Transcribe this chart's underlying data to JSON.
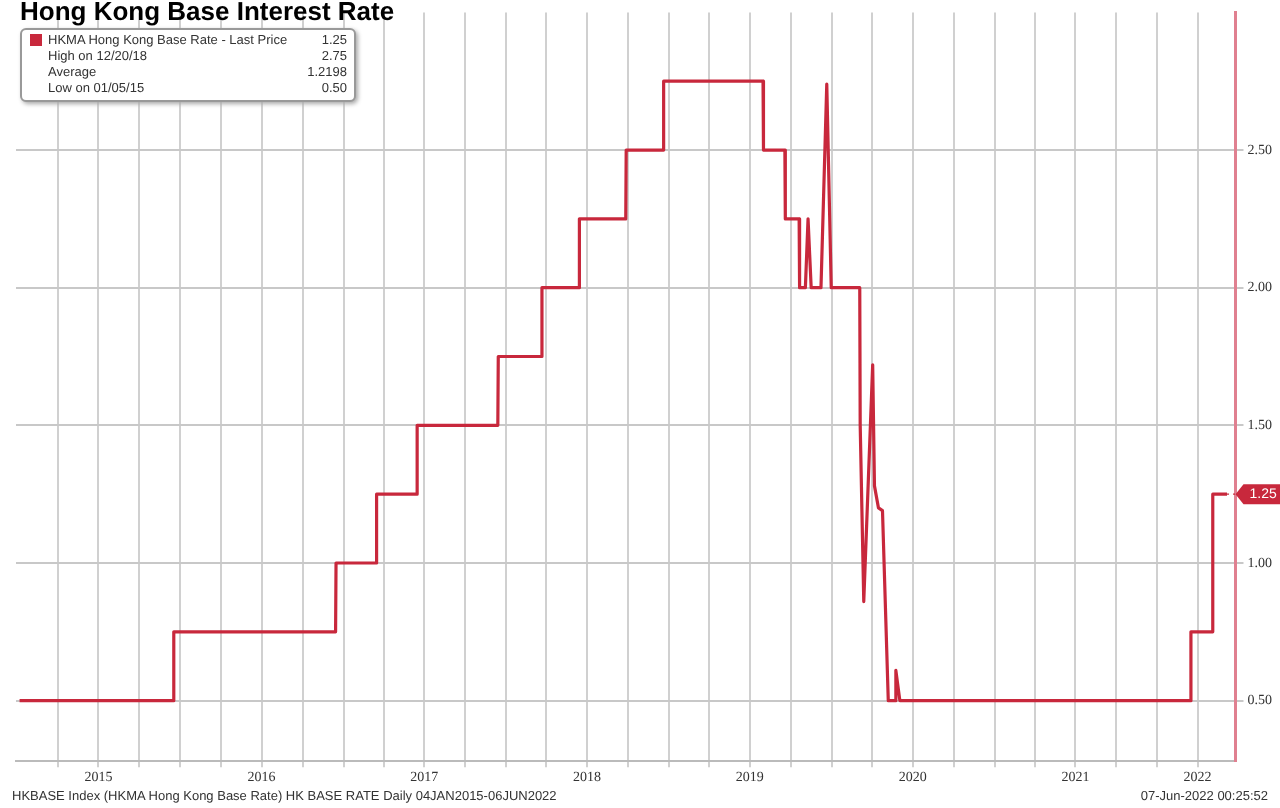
{
  "chart_data": {
    "type": "line",
    "title": "Hong Kong Base Interest Rate",
    "xlim": [
      "2014-12-28",
      "2022-06-25"
    ],
    "xticks": [
      {
        "value": "2015-04-01",
        "label": null
      },
      {
        "value": "2015-07-01",
        "label": "2015"
      },
      {
        "value": "2015-10-01",
        "label": null
      },
      {
        "value": "2016-01-01",
        "label": null
      },
      {
        "value": "2016-04-01",
        "label": null
      },
      {
        "value": "2016-07-01",
        "label": "2016"
      },
      {
        "value": "2016-10-01",
        "label": null
      },
      {
        "value": "2017-01-01",
        "label": null
      },
      {
        "value": "2017-04-01",
        "label": null
      },
      {
        "value": "2017-07-01",
        "label": "2017"
      },
      {
        "value": "2017-10-01",
        "label": null
      },
      {
        "value": "2018-01-01",
        "label": null
      },
      {
        "value": "2018-04-01",
        "label": null
      },
      {
        "value": "2018-07-01",
        "label": "2018"
      },
      {
        "value": "2018-10-01",
        "label": null
      },
      {
        "value": "2019-01-01",
        "label": null
      },
      {
        "value": "2019-04-01",
        "label": null
      },
      {
        "value": "2019-07-01",
        "label": "2019"
      },
      {
        "value": "2019-10-01",
        "label": null
      },
      {
        "value": "2020-01-01",
        "label": null
      },
      {
        "value": "2020-04-01",
        "label": null
      },
      {
        "value": "2020-07-01",
        "label": "2020"
      },
      {
        "value": "2020-10-01",
        "label": null
      },
      {
        "value": "2021-01-01",
        "label": null
      },
      {
        "value": "2021-04-01",
        "label": null
      },
      {
        "value": "2021-07-01",
        "label": "2021"
      },
      {
        "value": "2021-10-01",
        "label": null
      },
      {
        "value": "2022-01-01",
        "label": null
      },
      {
        "value": "2022-04-01",
        "label": "2022"
      }
    ],
    "ylim": [
      0.28,
      3.0
    ],
    "yticks": [
      {
        "value": 0.5,
        "label": "0.50"
      },
      {
        "value": 1,
        "label": "1.00"
      },
      {
        "value": 1.5,
        "label": "1.50"
      },
      {
        "value": 2,
        "label": "2.00"
      },
      {
        "value": 2.5,
        "label": "2.50"
      }
    ],
    "grid": true,
    "legend": "top left",
    "marker": "none",
    "line_style": "solid",
    "series": [
      {
        "name": "HKMA Hong Kong Base Rate - Last Price",
        "color": "#c8283c",
        "x": [
          "2015-01-05",
          "2015-12-16",
          "2015-12-17",
          "2016-12-14",
          "2016-12-15",
          "2017-03-15",
          "2017-03-16",
          "2017-06-14",
          "2017-06-15",
          "2017-12-13",
          "2017-12-14",
          "2018-03-21",
          "2018-03-22",
          "2018-06-13",
          "2018-06-14",
          "2018-09-26",
          "2018-09-27",
          "2018-12-19",
          "2018-12-20",
          "2019-07-31",
          "2019-08-01",
          "2019-09-18",
          "2019-09-19",
          "2019-10-20",
          "2019-10-21",
          "2019-11-03",
          "2019-11-09",
          "2019-11-16",
          "2019-12-08",
          "2019-12-21",
          "2019-12-31",
          "2020-03-04",
          "2020-03-05",
          "2020-03-09",
          "2020-03-13",
          "2020-04-02",
          "2020-04-06",
          "2020-04-15",
          "2020-04-24",
          "2020-05-07",
          "2020-05-20",
          "2020-05-24",
          "2020-06-02",
          "2022-03-16",
          "2022-03-17",
          "2022-05-04",
          "2022-05-05",
          "2022-06-06"
        ],
        "values": [
          0.5,
          0.5,
          0.75,
          0.75,
          1.0,
          1.0,
          1.25,
          1.25,
          1.5,
          1.5,
          1.75,
          1.75,
          2.0,
          2.0,
          2.25,
          2.25,
          2.5,
          2.5,
          2.75,
          2.75,
          2.5,
          2.5,
          2.25,
          2.25,
          2.0,
          2.0,
          2.25,
          2.0,
          2.0,
          2.74,
          2.0,
          2.0,
          1.5,
          1.5,
          0.86,
          1.72,
          1.28,
          1.2,
          1.19,
          0.5,
          0.5,
          0.61,
          0.5,
          0.5,
          0.75,
          0.75,
          1.25,
          1.25
        ]
      }
    ],
    "annotations": [
      {
        "text": "1.25",
        "x": "2022-06-06",
        "y": 1.25
      },
      "1.25",
      "High on 12/20/18",
      "2.75",
      "Average",
      "1.2198",
      "Low on 01/05/15",
      "0.50",
      "HKBASE Index (HKMA Hong Kong Base Rate) HK BASE RATE  Daily 04JAN2015-06JUN2022",
      "07-Jun-2022 00:25:52"
    ]
  }
}
